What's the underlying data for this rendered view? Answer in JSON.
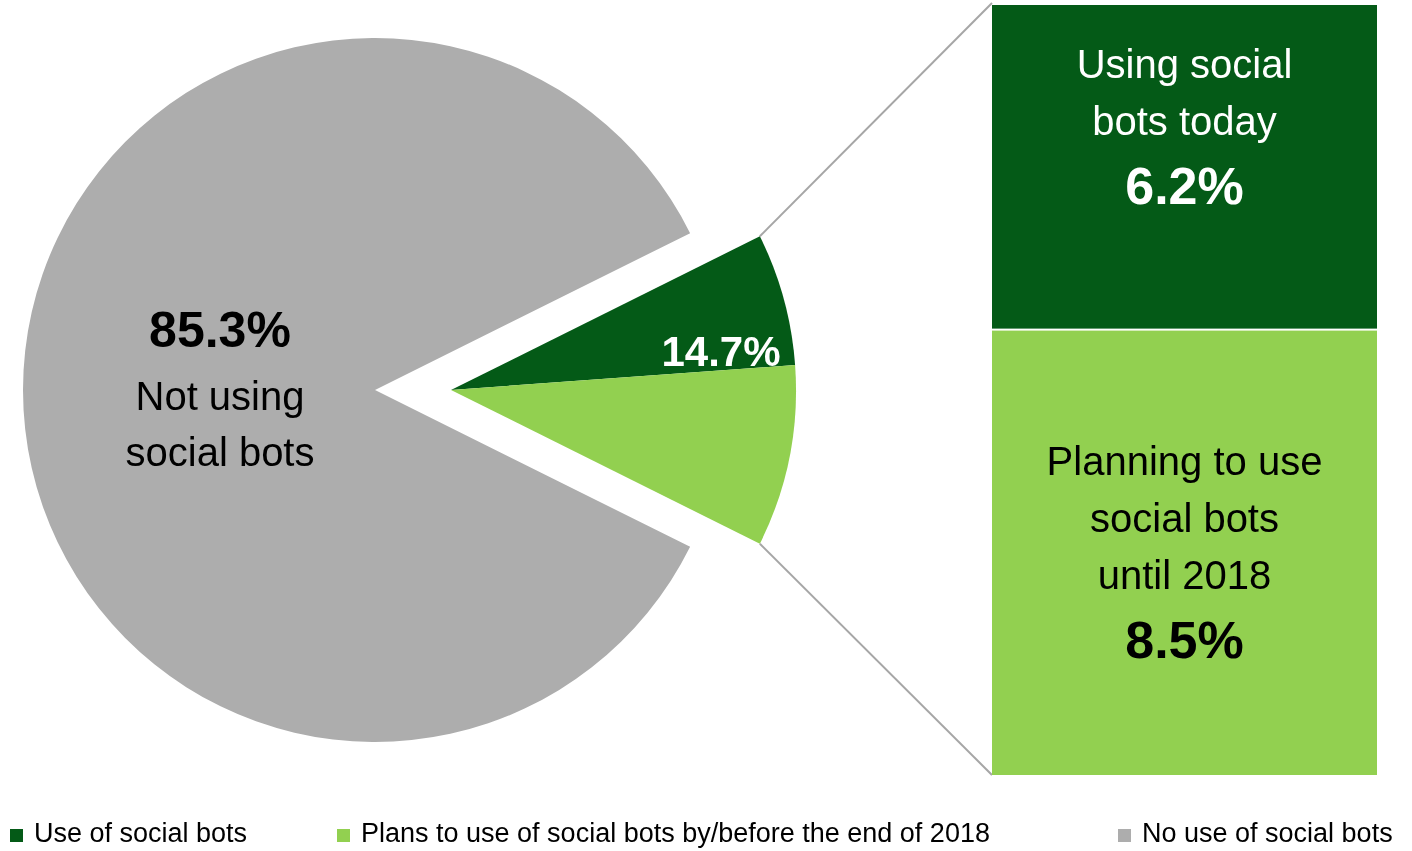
{
  "chart_data": [
    {
      "type": "pie",
      "categories": [
        "Use of social bots",
        "Plans to use of social bots by/before the end of 2018",
        "No use of social bots"
      ],
      "values": [
        6.2,
        8.5,
        85.3
      ],
      "colors": [
        "#045a17",
        "#92d050",
        "#adadad"
      ],
      "value_labels": [
        null,
        null,
        "85.3%"
      ],
      "annotations": [
        "Not using social bots",
        "14.7%"
      ],
      "legend": "bottom"
    },
    {
      "type": "bar",
      "stacked": true,
      "categories": [
        null
      ],
      "series": [
        {
          "name": "Planning to use social bots until 2018",
          "color": "#92d050",
          "values": [
            8.5
          ],
          "value_labels": [
            "8.5%"
          ]
        },
        {
          "name": "Using social bots today",
          "color": "#045a17",
          "values": [
            6.2
          ],
          "value_labels": [
            "6.2%"
          ]
        }
      ]
    }
  ]
}
